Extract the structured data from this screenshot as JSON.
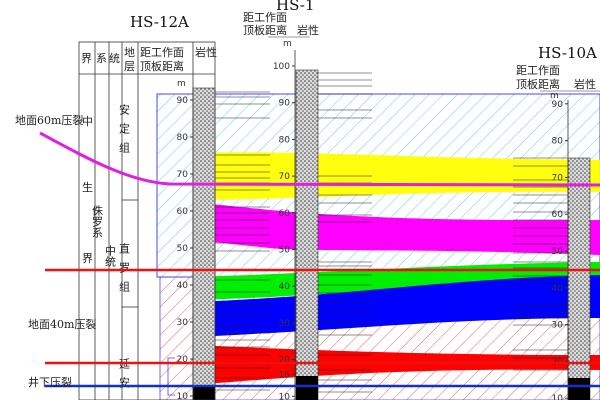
{
  "boreholes": [
    {
      "name": "HS-12A",
      "dist_header": [
        "距工作面",
        "顶板距离"
      ],
      "lith_header": "岩性",
      "unit": "m",
      "ticks": [
        90,
        80,
        70,
        60,
        50,
        40,
        30,
        20,
        10
      ]
    },
    {
      "name": "HS-1",
      "dist_header": [
        "距工作面",
        "顶板距离"
      ],
      "lith_header": "岩性",
      "unit": "m",
      "ticks": [
        100,
        90,
        80,
        70,
        60,
        50,
        40,
        30,
        20,
        16,
        10
      ]
    },
    {
      "name": "HS-10A",
      "dist_header": [
        "距工作面",
        "顶板距离"
      ],
      "lith_header": "岩性",
      "unit": "m",
      "ticks": [
        90,
        80,
        70,
        60,
        50,
        40,
        30,
        20,
        10
      ]
    }
  ],
  "strat_table": {
    "headers": [
      "界",
      "系",
      "统",
      "地",
      "层"
    ],
    "era": [
      "中",
      "生",
      "界"
    ],
    "system": "侏罗系",
    "series": "中统",
    "formations": [
      "安定组",
      "直罗组",
      "延安"
    ]
  },
  "annotations": {
    "surface_60m": "地面60m压裂",
    "surface_40m": "地面40m压裂",
    "underground": "井下压裂"
  },
  "colors": {
    "cyan_zone": "#5fd3e6",
    "red_zone": "#f06060",
    "yellow_layer": "#ffff00",
    "magenta_layer": "#ff00ff",
    "green_layer": "#00ee00",
    "blue_layer": "#0000ff",
    "red_layer": "#ff0000",
    "surface_60m_line": "#e020e0",
    "surface_40m_line": "#ee1111",
    "underground_line": "#1030d0"
  }
}
